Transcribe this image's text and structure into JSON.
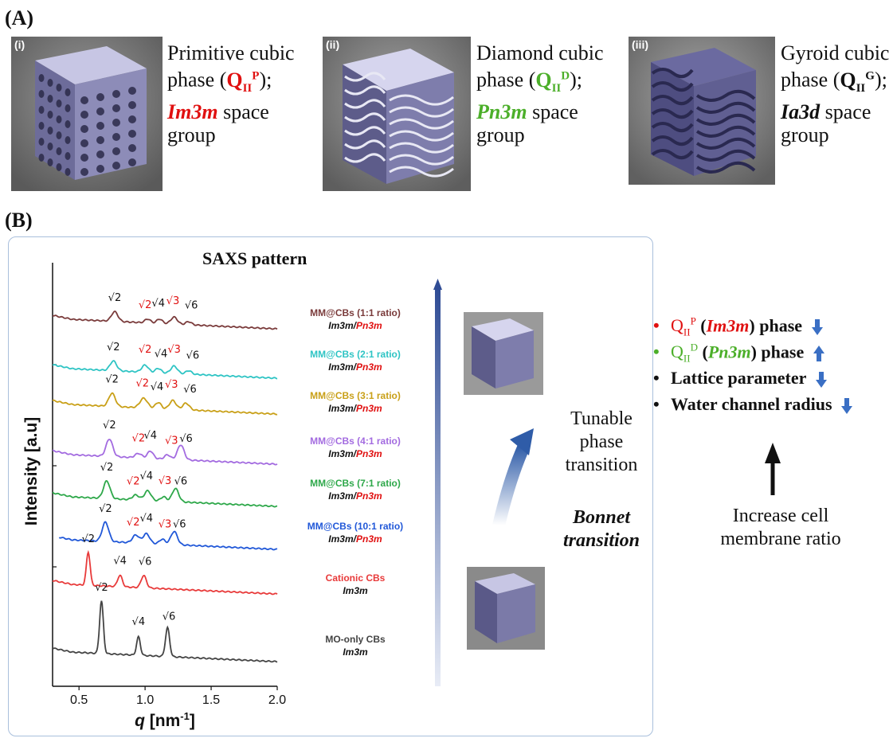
{
  "panel_a_label": "(A)",
  "panel_b_label": "(B)",
  "phases": [
    {
      "tag": "(i)",
      "line1": "Primitive cubic",
      "line2_pre": "phase (",
      "q_sym": "Q",
      "q_sub": "II",
      "q_sup": "P",
      "line2_post": ");",
      "space_group": "Im3m",
      "sg_suffix": " space",
      "line4": "group",
      "sg_color": "red"
    },
    {
      "tag": "(ii)",
      "line1": "Diamond cubic",
      "line2_pre": "phase (",
      "q_sym": "Q",
      "q_sub": "II",
      "q_sup": "D",
      "line2_post": ");",
      "space_group": "Pn3m",
      "sg_suffix": " space",
      "line4": "group",
      "sg_color": "green"
    },
    {
      "tag": "(iii)",
      "line1": "Gyroid cubic",
      "line2_pre": "phase (",
      "q_sym": "Q",
      "q_sub": "II",
      "q_sup": "G",
      "line2_post": ");",
      "space_group": "Ia3d",
      "sg_suffix": " space",
      "line4": "group",
      "sg_color": "black"
    }
  ],
  "saxs_title": "SAXS pattern",
  "chart_data": {
    "type": "line",
    "title": "SAXS pattern",
    "xlabel": "q [nm⁻¹]",
    "ylabel": "Intensity [a.u]",
    "xlim": [
      0.3,
      2.0
    ],
    "xticks": [
      "0.5",
      "1.0",
      "1.5",
      "2.0"
    ],
    "series": [
      {
        "name": "MM@CBs (1:1 ratio)",
        "space_group": [
          "Im3m",
          "/",
          "Pn3m"
        ],
        "color": "#7a3b3b",
        "baseline": 0.0,
        "start": 0.3,
        "peaks": [
          [
            0.77,
            0.55,
            0.035
          ],
          [
            1.02,
            0.22,
            0.03
          ],
          [
            1.11,
            0.25,
            0.03
          ],
          [
            1.22,
            0.4,
            0.035
          ],
          [
            1.33,
            0.18,
            0.03
          ]
        ],
        "marks": [
          {
            "q": 0.77,
            "t": "√2",
            "c": "black"
          },
          {
            "q": 1.0,
            "t": "√2",
            "c": "red"
          },
          {
            "q": 1.1,
            "t": "√4",
            "c": "black"
          },
          {
            "q": 1.21,
            "t": "√3",
            "c": "red"
          },
          {
            "q": 1.35,
            "t": "√6",
            "c": "black"
          }
        ]
      },
      {
        "name": "MM@CBs (2:1 ratio)",
        "space_group": [
          "Im3m",
          "/",
          "Pn3m"
        ],
        "color": "#2ec4c4",
        "baseline": 0.0,
        "start": 0.3,
        "peaks": [
          [
            0.76,
            0.55,
            0.035
          ],
          [
            1.0,
            0.4,
            0.035
          ],
          [
            1.1,
            0.25,
            0.03
          ],
          [
            1.22,
            0.42,
            0.035
          ],
          [
            1.33,
            0.2,
            0.03
          ]
        ],
        "marks": [
          {
            "q": 0.76,
            "t": "√2",
            "c": "black"
          },
          {
            "q": 1.0,
            "t": "√2",
            "c": "red"
          },
          {
            "q": 1.12,
            "t": "√4",
            "c": "black"
          },
          {
            "q": 1.22,
            "t": "√3",
            "c": "red"
          },
          {
            "q": 1.36,
            "t": "√6",
            "c": "black"
          }
        ]
      },
      {
        "name": "MM@CBs (3:1 ratio)",
        "space_group": [
          "Im3m",
          "/",
          "Pn3m"
        ],
        "color": "#c9a018",
        "baseline": 0.0,
        "start": 0.3,
        "peaks": [
          [
            0.75,
            0.75,
            0.035
          ],
          [
            0.99,
            0.55,
            0.04
          ],
          [
            1.1,
            0.35,
            0.03
          ],
          [
            1.21,
            0.5,
            0.035
          ],
          [
            1.31,
            0.38,
            0.035
          ]
        ],
        "marks": [
          {
            "q": 0.75,
            "t": "√2",
            "c": "black"
          },
          {
            "q": 0.98,
            "t": "√2",
            "c": "red"
          },
          {
            "q": 1.09,
            "t": "√4",
            "c": "black"
          },
          {
            "q": 1.2,
            "t": "√3",
            "c": "red"
          },
          {
            "q": 1.34,
            "t": "√6",
            "c": "black"
          }
        ]
      },
      {
        "name": "MM@CBs (4:1 ratio)",
        "space_group": [
          "Im3m",
          "/",
          "Pn3m"
        ],
        "color": "#a36be0",
        "baseline": 0.0,
        "start": 0.3,
        "peaks": [
          [
            0.73,
            1.0,
            0.035
          ],
          [
            0.95,
            0.25,
            0.035
          ],
          [
            1.04,
            0.42,
            0.03
          ],
          [
            1.17,
            0.25,
            0.03
          ],
          [
            1.27,
            0.85,
            0.035
          ]
        ],
        "marks": [
          {
            "q": 0.73,
            "t": "√2",
            "c": "black"
          },
          {
            "q": 0.95,
            "t": "√2",
            "c": "red"
          },
          {
            "q": 1.04,
            "t": "√4",
            "c": "black"
          },
          {
            "q": 1.2,
            "t": "√3",
            "c": "red"
          },
          {
            "q": 1.31,
            "t": "√6",
            "c": "black"
          }
        ]
      },
      {
        "name": "MM@CBs (7:1 ratio)",
        "space_group": [
          "Im3m",
          "/",
          "Pn3m"
        ],
        "color": "#2ea84a",
        "baseline": 0.0,
        "start": 0.3,
        "peaks": [
          [
            0.71,
            1.0,
            0.035
          ],
          [
            0.93,
            0.28,
            0.035
          ],
          [
            1.02,
            0.55,
            0.035
          ],
          [
            1.14,
            0.25,
            0.03
          ],
          [
            1.23,
            0.75,
            0.035
          ]
        ],
        "marks": [
          {
            "q": 0.71,
            "t": "√2",
            "c": "black"
          },
          {
            "q": 0.91,
            "t": "√2",
            "c": "red"
          },
          {
            "q": 1.01,
            "t": "√4",
            "c": "black"
          },
          {
            "q": 1.15,
            "t": "√3",
            "c": "red"
          },
          {
            "q": 1.27,
            "t": "√6",
            "c": "black"
          }
        ]
      },
      {
        "name": "MM@CBs (10:1 ratio)",
        "space_group": [
          "Im3m",
          "/",
          "Pn3m"
        ],
        "color": "#2158d8",
        "baseline": 0.0,
        "start": 0.35,
        "peaks": [
          [
            0.7,
            1.1,
            0.035
          ],
          [
            0.93,
            0.45,
            0.035
          ],
          [
            1.01,
            0.55,
            0.035
          ],
          [
            1.13,
            0.28,
            0.03
          ],
          [
            1.22,
            0.75,
            0.035
          ]
        ],
        "marks": [
          {
            "q": 0.7,
            "t": "√2",
            "c": "black"
          },
          {
            "q": 0.91,
            "t": "√2",
            "c": "red"
          },
          {
            "q": 1.01,
            "t": "√4",
            "c": "black"
          },
          {
            "q": 1.15,
            "t": "√3",
            "c": "red"
          },
          {
            "q": 1.26,
            "t": "√6",
            "c": "black"
          }
        ]
      },
      {
        "name": "Cationic CBs",
        "space_group": [
          "Im3m"
        ],
        "color": "#e83a3a",
        "baseline": 0.0,
        "start": 0.3,
        "peaks": [
          [
            0.57,
            1.9,
            0.02
          ],
          [
            0.81,
            0.65,
            0.025
          ],
          [
            0.99,
            0.7,
            0.028
          ]
        ],
        "marks": [
          {
            "q": 0.57,
            "t": "√2",
            "c": "black"
          },
          {
            "q": 0.81,
            "t": "√4",
            "c": "black"
          },
          {
            "q": 1.0,
            "t": "√6",
            "c": "black"
          }
        ]
      },
      {
        "name": "MO-only CBs",
        "space_group": [
          "Im3m"
        ],
        "color": "#444444",
        "baseline": 0.0,
        "start": 0.3,
        "peaks": [
          [
            0.67,
            3.0,
            0.02
          ],
          [
            0.95,
            1.05,
            0.02
          ],
          [
            1.17,
            1.65,
            0.022
          ]
        ],
        "marks": [
          {
            "q": 0.67,
            "t": "√2",
            "c": "black"
          },
          {
            "q": 0.95,
            "t": "√4",
            "c": "black"
          },
          {
            "q": 1.18,
            "t": "√6",
            "c": "black"
          }
        ]
      }
    ]
  },
  "mid": {
    "tunable": [
      "Tunable",
      "phase",
      "transition"
    ],
    "bonnet": [
      "Bonnet",
      "transition"
    ]
  },
  "right": {
    "items": [
      {
        "dot_color": "#e01010",
        "q_sym": "Q",
        "q_sub": "II",
        "q_sup": "P",
        "sg": "Im3m",
        "text": " phase",
        "arrow": "down",
        "color_class": "red"
      },
      {
        "dot_color": "#4caf2a",
        "q_sym": "Q",
        "q_sub": "II",
        "q_sup": "D",
        "sg": "Pn3m",
        "text": " phase",
        "arrow": "up",
        "color_class": "green"
      },
      {
        "dot_color": "#111111",
        "text": "Lattice parameter",
        "arrow": "down"
      },
      {
        "dot_color": "#111111",
        "text": "Water channel radius",
        "arrow": "down"
      }
    ],
    "increase": [
      "Increase cell",
      "membrane ratio"
    ]
  },
  "colors": {
    "accent_blue": "#3a6fc4",
    "frame": "#a9bfdc"
  }
}
